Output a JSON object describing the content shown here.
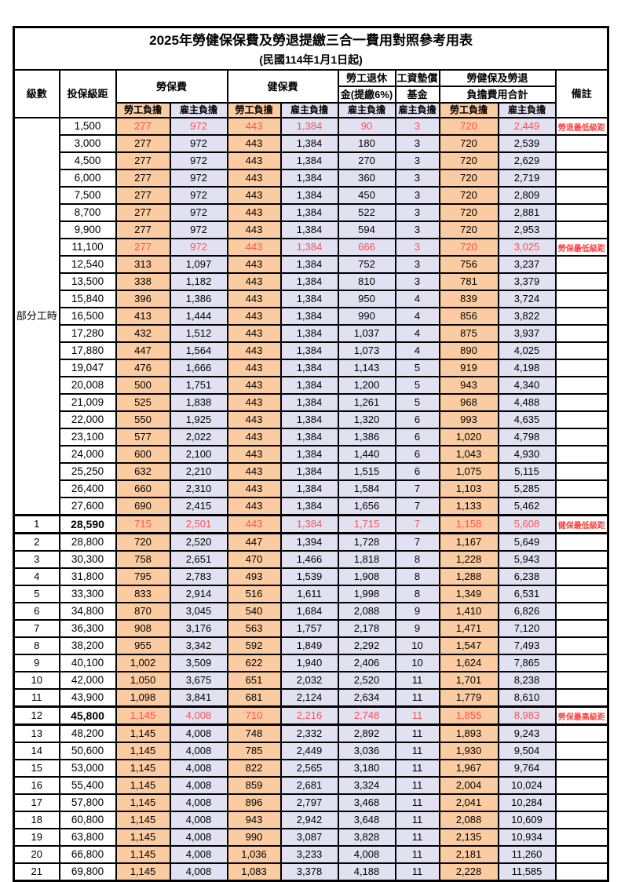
{
  "table": {
    "title": "2025年勞健保保費及勞退提繳三合一費用對照參考用表",
    "subtitle": "(民國114年1月1日起)",
    "header": {
      "level": "級數",
      "bracket": "投保級距",
      "labor_insurance": "勞保費",
      "health_insurance": "健保費",
      "pension_line1": "勞工退休",
      "pension_line2": "金(提繳6%)",
      "wage_fund_line1": "工資墊償",
      "wage_fund_line2": "基金",
      "total_line1": "勞健保及勞退",
      "total_line2": "負擔費用合計",
      "remark": "備註",
      "employee_share": "勞工負擔",
      "employer_share": "雇主負擔"
    },
    "colors": {
      "employee_bg": "#FBCBA1",
      "employer_bg": "#E1E1F2",
      "highlight_text": "#FF5050",
      "remark_text": "#FF4040"
    },
    "part_time_label": "部分工時",
    "part_time_rowspan": 23,
    "rows": [
      {
        "level": "",
        "bracket": "1,500",
        "values": [
          "277",
          "972",
          "443",
          "1,384",
          "90",
          "3",
          "720",
          "2,449"
        ],
        "remark": "勞退最低級距",
        "red": true,
        "hl": false,
        "bold_bracket": false
      },
      {
        "level": "",
        "bracket": "3,000",
        "values": [
          "277",
          "972",
          "443",
          "1,384",
          "180",
          "3",
          "720",
          "2,539"
        ],
        "remark": "",
        "red": false,
        "hl": false,
        "bold_bracket": false
      },
      {
        "level": "",
        "bracket": "4,500",
        "values": [
          "277",
          "972",
          "443",
          "1,384",
          "270",
          "3",
          "720",
          "2,629"
        ],
        "remark": "",
        "red": false,
        "hl": false,
        "bold_bracket": false
      },
      {
        "level": "",
        "bracket": "6,000",
        "values": [
          "277",
          "972",
          "443",
          "1,384",
          "360",
          "3",
          "720",
          "2,719"
        ],
        "remark": "",
        "red": false,
        "hl": false,
        "bold_bracket": false
      },
      {
        "level": "",
        "bracket": "7,500",
        "values": [
          "277",
          "972",
          "443",
          "1,384",
          "450",
          "3",
          "720",
          "2,809"
        ],
        "remark": "",
        "red": false,
        "hl": false,
        "bold_bracket": false
      },
      {
        "level": "",
        "bracket": "8,700",
        "values": [
          "277",
          "972",
          "443",
          "1,384",
          "522",
          "3",
          "720",
          "2,881"
        ],
        "remark": "",
        "red": false,
        "hl": false,
        "bold_bracket": false
      },
      {
        "level": "",
        "bracket": "9,900",
        "values": [
          "277",
          "972",
          "443",
          "1,384",
          "594",
          "3",
          "720",
          "2,953"
        ],
        "remark": "",
        "red": false,
        "hl": false,
        "bold_bracket": false
      },
      {
        "level": "",
        "bracket": "11,100",
        "values": [
          "277",
          "972",
          "443",
          "1,384",
          "666",
          "3",
          "720",
          "3,025"
        ],
        "remark": "勞保最低級距",
        "red": true,
        "hl": false,
        "bold_bracket": false
      },
      {
        "level": "",
        "bracket": "12,540",
        "values": [
          "313",
          "1,097",
          "443",
          "1,384",
          "752",
          "3",
          "756",
          "3,237"
        ],
        "remark": "",
        "red": false,
        "hl": false,
        "bold_bracket": false
      },
      {
        "level": "",
        "bracket": "13,500",
        "values": [
          "338",
          "1,182",
          "443",
          "1,384",
          "810",
          "3",
          "781",
          "3,379"
        ],
        "remark": "",
        "red": false,
        "hl": false,
        "bold_bracket": false
      },
      {
        "level": "",
        "bracket": "15,840",
        "values": [
          "396",
          "1,386",
          "443",
          "1,384",
          "950",
          "4",
          "839",
          "3,724"
        ],
        "remark": "",
        "red": false,
        "hl": false,
        "bold_bracket": false
      },
      {
        "level": "",
        "bracket": "16,500",
        "values": [
          "413",
          "1,444",
          "443",
          "1,384",
          "990",
          "4",
          "856",
          "3,822"
        ],
        "remark": "",
        "red": false,
        "hl": false,
        "bold_bracket": false
      },
      {
        "level": "",
        "bracket": "17,280",
        "values": [
          "432",
          "1,512",
          "443",
          "1,384",
          "1,037",
          "4",
          "875",
          "3,937"
        ],
        "remark": "",
        "red": false,
        "hl": false,
        "bold_bracket": false
      },
      {
        "level": "",
        "bracket": "17,880",
        "values": [
          "447",
          "1,564",
          "443",
          "1,384",
          "1,073",
          "4",
          "890",
          "4,025"
        ],
        "remark": "",
        "red": false,
        "hl": false,
        "bold_bracket": false
      },
      {
        "level": "",
        "bracket": "19,047",
        "values": [
          "476",
          "1,666",
          "443",
          "1,384",
          "1,143",
          "5",
          "919",
          "4,198"
        ],
        "remark": "",
        "red": false,
        "hl": false,
        "bold_bracket": false
      },
      {
        "level": "",
        "bracket": "20,008",
        "values": [
          "500",
          "1,751",
          "443",
          "1,384",
          "1,200",
          "5",
          "943",
          "4,340"
        ],
        "remark": "",
        "red": false,
        "hl": false,
        "bold_bracket": false
      },
      {
        "level": "",
        "bracket": "21,009",
        "values": [
          "525",
          "1,838",
          "443",
          "1,384",
          "1,261",
          "5",
          "968",
          "4,488"
        ],
        "remark": "",
        "red": false,
        "hl": false,
        "bold_bracket": false
      },
      {
        "level": "",
        "bracket": "22,000",
        "values": [
          "550",
          "1,925",
          "443",
          "1,384",
          "1,320",
          "6",
          "993",
          "4,635"
        ],
        "remark": "",
        "red": false,
        "hl": false,
        "bold_bracket": false
      },
      {
        "level": "",
        "bracket": "23,100",
        "values": [
          "577",
          "2,022",
          "443",
          "1,384",
          "1,386",
          "6",
          "1,020",
          "4,798"
        ],
        "remark": "",
        "red": false,
        "hl": false,
        "bold_bracket": false
      },
      {
        "level": "",
        "bracket": "24,000",
        "values": [
          "600",
          "2,100",
          "443",
          "1,384",
          "1,440",
          "6",
          "1,043",
          "4,930"
        ],
        "remark": "",
        "red": false,
        "hl": false,
        "bold_bracket": false
      },
      {
        "level": "",
        "bracket": "25,250",
        "values": [
          "632",
          "2,210",
          "443",
          "1,384",
          "1,515",
          "6",
          "1,075",
          "5,115"
        ],
        "remark": "",
        "red": false,
        "hl": false,
        "bold_bracket": false
      },
      {
        "level": "",
        "bracket": "26,400",
        "values": [
          "660",
          "2,310",
          "443",
          "1,384",
          "1,584",
          "7",
          "1,103",
          "5,285"
        ],
        "remark": "",
        "red": false,
        "hl": false,
        "bold_bracket": false
      },
      {
        "level": "",
        "bracket": "27,600",
        "values": [
          "690",
          "2,415",
          "443",
          "1,384",
          "1,656",
          "7",
          "1,133",
          "5,462"
        ],
        "remark": "",
        "red": false,
        "hl": false,
        "bold_bracket": false
      },
      {
        "level": "1",
        "bracket": "28,590",
        "values": [
          "715",
          "2,501",
          "443",
          "1,384",
          "1,715",
          "7",
          "1,158",
          "5,608"
        ],
        "remark": "健保最低級距",
        "red": true,
        "hl": true,
        "bold_bracket": true
      },
      {
        "level": "2",
        "bracket": "28,800",
        "values": [
          "720",
          "2,520",
          "447",
          "1,394",
          "1,728",
          "7",
          "1,167",
          "5,649"
        ],
        "remark": "",
        "red": false,
        "hl": false,
        "bold_bracket": false
      },
      {
        "level": "3",
        "bracket": "30,300",
        "values": [
          "758",
          "2,651",
          "470",
          "1,466",
          "1,818",
          "8",
          "1,228",
          "5,943"
        ],
        "remark": "",
        "red": false,
        "hl": false,
        "bold_bracket": false
      },
      {
        "level": "4",
        "bracket": "31,800",
        "values": [
          "795",
          "2,783",
          "493",
          "1,539",
          "1,908",
          "8",
          "1,288",
          "6,238"
        ],
        "remark": "",
        "red": false,
        "hl": false,
        "bold_bracket": false
      },
      {
        "level": "5",
        "bracket": "33,300",
        "values": [
          "833",
          "2,914",
          "516",
          "1,611",
          "1,998",
          "8",
          "1,349",
          "6,531"
        ],
        "remark": "",
        "red": false,
        "hl": false,
        "bold_bracket": false
      },
      {
        "level": "6",
        "bracket": "34,800",
        "values": [
          "870",
          "3,045",
          "540",
          "1,684",
          "2,088",
          "9",
          "1,410",
          "6,826"
        ],
        "remark": "",
        "red": false,
        "hl": false,
        "bold_bracket": false
      },
      {
        "level": "7",
        "bracket": "36,300",
        "values": [
          "908",
          "3,176",
          "563",
          "1,757",
          "2,178",
          "9",
          "1,471",
          "7,120"
        ],
        "remark": "",
        "red": false,
        "hl": false,
        "bold_bracket": false
      },
      {
        "level": "8",
        "bracket": "38,200",
        "values": [
          "955",
          "3,342",
          "592",
          "1,849",
          "2,292",
          "10",
          "1,547",
          "7,493"
        ],
        "remark": "",
        "red": false,
        "hl": false,
        "bold_bracket": false
      },
      {
        "level": "9",
        "bracket": "40,100",
        "values": [
          "1,002",
          "3,509",
          "622",
          "1,940",
          "2,406",
          "10",
          "1,624",
          "7,865"
        ],
        "remark": "",
        "red": false,
        "hl": false,
        "bold_bracket": false
      },
      {
        "level": "10",
        "bracket": "42,000",
        "values": [
          "1,050",
          "3,675",
          "651",
          "2,032",
          "2,520",
          "11",
          "1,701",
          "8,238"
        ],
        "remark": "",
        "red": false,
        "hl": false,
        "bold_bracket": false
      },
      {
        "level": "11",
        "bracket": "43,900",
        "values": [
          "1,098",
          "3,841",
          "681",
          "2,124",
          "2,634",
          "11",
          "1,779",
          "8,610"
        ],
        "remark": "",
        "red": false,
        "hl": false,
        "bold_bracket": false
      },
      {
        "level": "12",
        "bracket": "45,800",
        "values": [
          "1,145",
          "4,008",
          "710",
          "2,216",
          "2,748",
          "11",
          "1,855",
          "8,983"
        ],
        "remark": "勞保最高級距",
        "red": true,
        "hl": true,
        "bold_bracket": true
      },
      {
        "level": "13",
        "bracket": "48,200",
        "values": [
          "1,145",
          "4,008",
          "748",
          "2,332",
          "2,892",
          "11",
          "1,893",
          "9,243"
        ],
        "remark": "",
        "red": false,
        "hl": false,
        "bold_bracket": false
      },
      {
        "level": "14",
        "bracket": "50,600",
        "values": [
          "1,145",
          "4,008",
          "785",
          "2,449",
          "3,036",
          "11",
          "1,930",
          "9,504"
        ],
        "remark": "",
        "red": false,
        "hl": false,
        "bold_bracket": false
      },
      {
        "level": "15",
        "bracket": "53,000",
        "values": [
          "1,145",
          "4,008",
          "822",
          "2,565",
          "3,180",
          "11",
          "1,967",
          "9,764"
        ],
        "remark": "",
        "red": false,
        "hl": false,
        "bold_bracket": false
      },
      {
        "level": "16",
        "bracket": "55,400",
        "values": [
          "1,145",
          "4,008",
          "859",
          "2,681",
          "3,324",
          "11",
          "2,004",
          "10,024"
        ],
        "remark": "",
        "red": false,
        "hl": false,
        "bold_bracket": false
      },
      {
        "level": "17",
        "bracket": "57,800",
        "values": [
          "1,145",
          "4,008",
          "896",
          "2,797",
          "3,468",
          "11",
          "2,041",
          "10,284"
        ],
        "remark": "",
        "red": false,
        "hl": false,
        "bold_bracket": false
      },
      {
        "level": "18",
        "bracket": "60,800",
        "values": [
          "1,145",
          "4,008",
          "943",
          "2,942",
          "3,648",
          "11",
          "2,088",
          "10,609"
        ],
        "remark": "",
        "red": false,
        "hl": false,
        "bold_bracket": false
      },
      {
        "level": "19",
        "bracket": "63,800",
        "values": [
          "1,145",
          "4,008",
          "990",
          "3,087",
          "3,828",
          "11",
          "2,135",
          "10,934"
        ],
        "remark": "",
        "red": false,
        "hl": false,
        "bold_bracket": false
      },
      {
        "level": "20",
        "bracket": "66,800",
        "values": [
          "1,145",
          "4,008",
          "1,036",
          "3,233",
          "4,008",
          "11",
          "2,181",
          "11,260"
        ],
        "remark": "",
        "red": false,
        "hl": false,
        "bold_bracket": false
      },
      {
        "level": "21",
        "bracket": "69,800",
        "values": [
          "1,145",
          "4,008",
          "1,083",
          "3,378",
          "4,188",
          "11",
          "2,228",
          "11,585"
        ],
        "remark": "",
        "red": false,
        "hl": false,
        "bold_bracket": false
      }
    ]
  }
}
